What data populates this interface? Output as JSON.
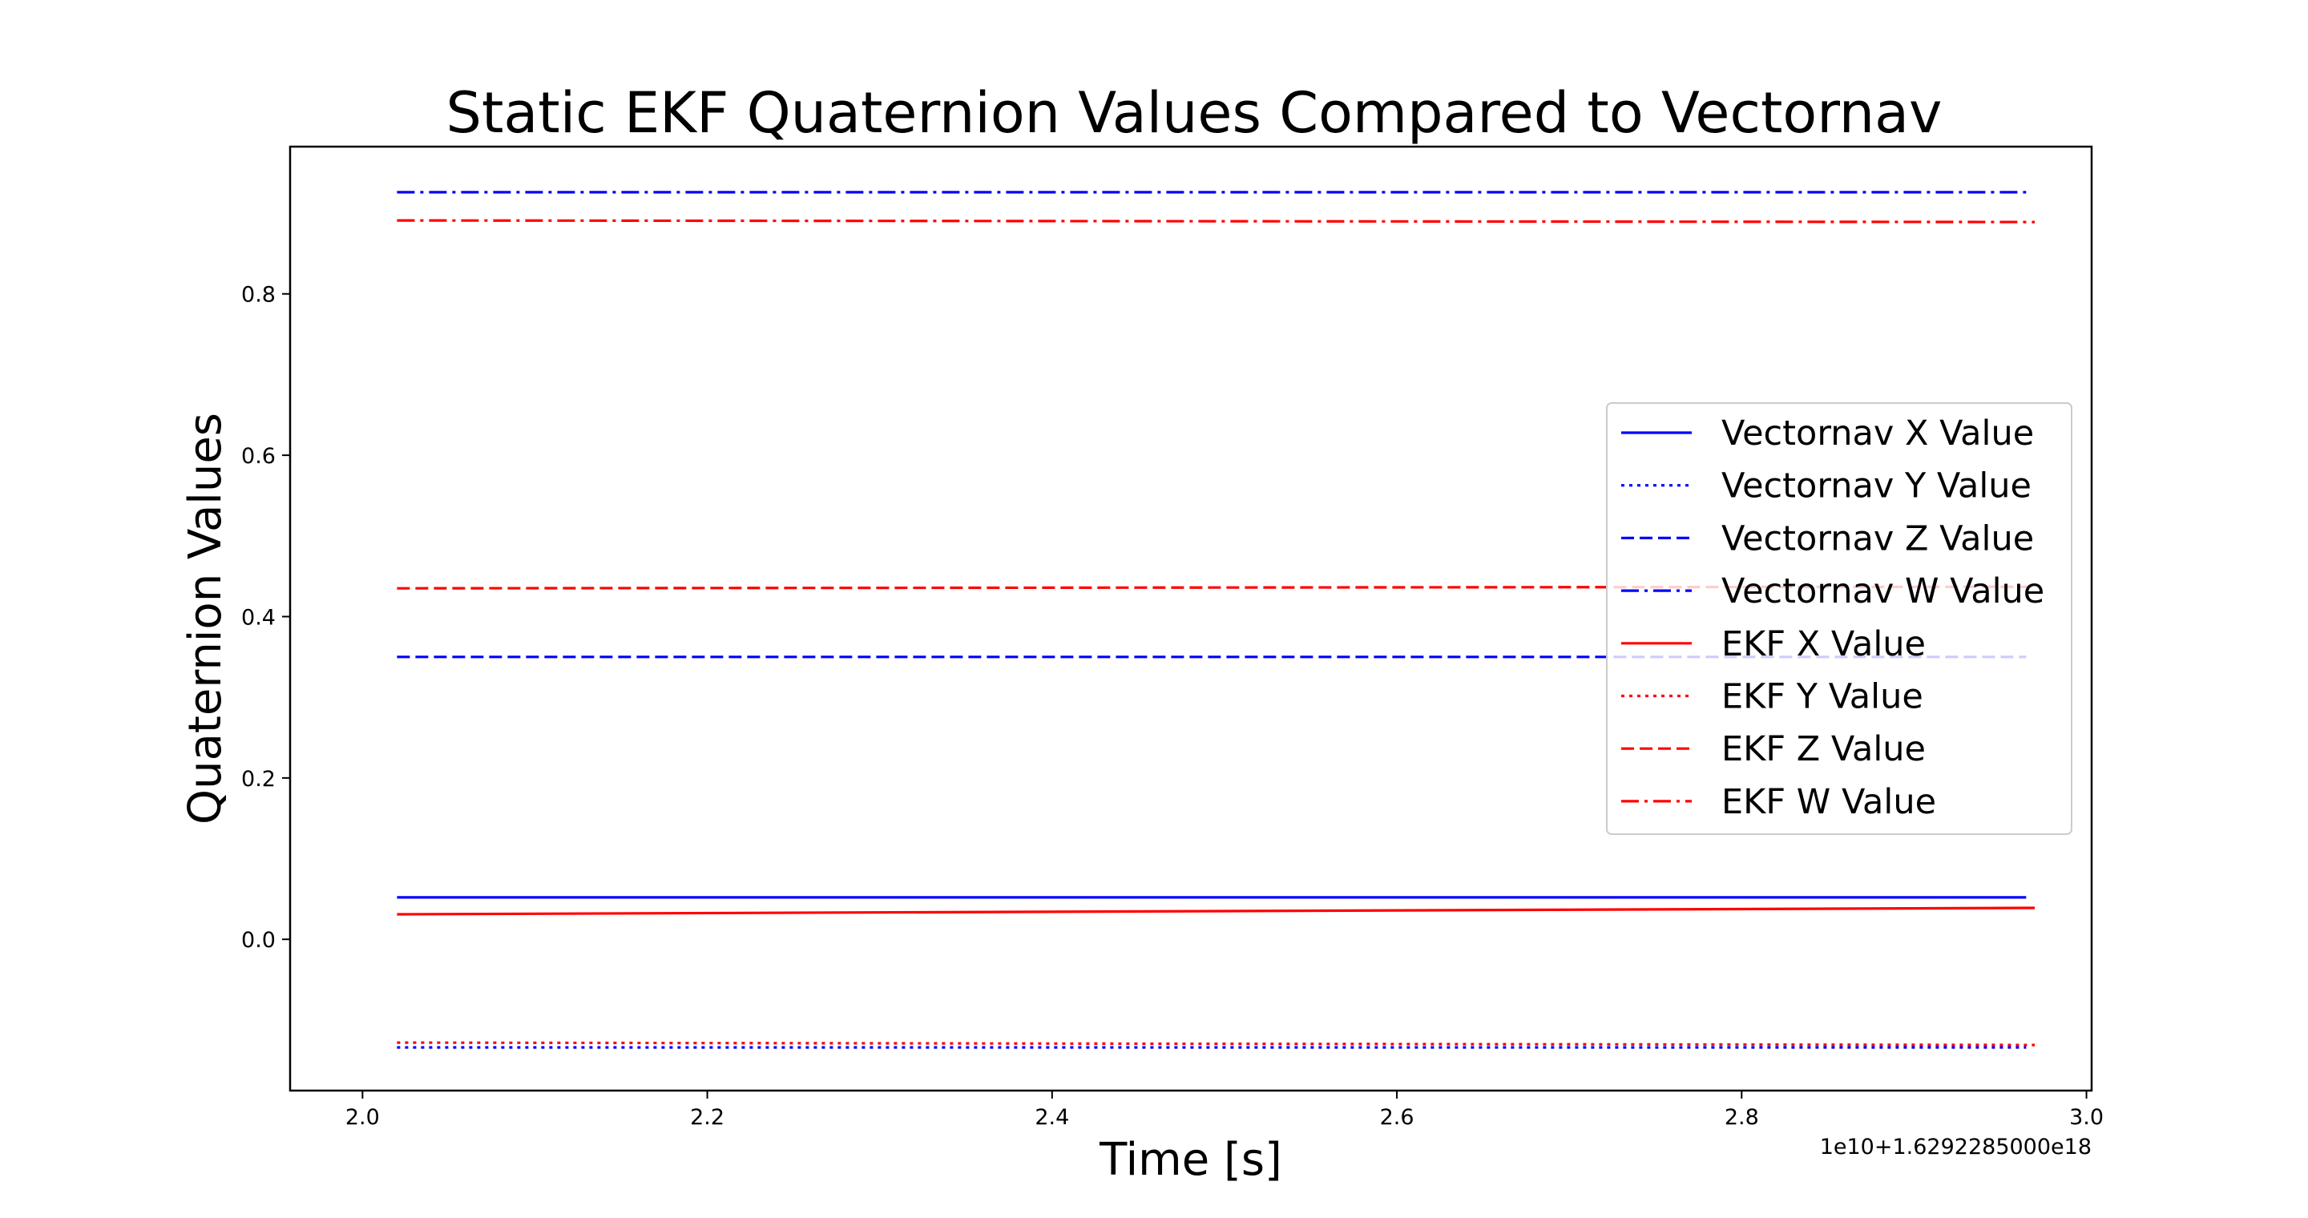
{
  "chart_data": {
    "type": "line",
    "title": "Static EKF Quaternion Values Compared to Vectornav",
    "xlabel": "Time [s]",
    "ylabel": "Quaternion Values",
    "x_offset_label": "1e10+1.6292285000e18",
    "xlim": [
      1.958,
      3.003
    ],
    "ylim": [
      -0.1875,
      0.9825
    ],
    "x_ticks": [
      {
        "value": 2.0,
        "label": "2.0"
      },
      {
        "value": 2.2,
        "label": "2.2"
      },
      {
        "value": 2.4,
        "label": "2.4"
      },
      {
        "value": 2.6,
        "label": "2.6"
      },
      {
        "value": 2.8,
        "label": "2.8"
      },
      {
        "value": 3.0,
        "label": "3.0"
      }
    ],
    "y_ticks": [
      {
        "value": 0.0,
        "label": "0.0"
      },
      {
        "value": 0.2,
        "label": "0.2"
      },
      {
        "value": 0.4,
        "label": "0.4"
      },
      {
        "value": 0.6,
        "label": "0.6"
      },
      {
        "value": 0.8,
        "label": "0.8"
      }
    ],
    "grid": false,
    "legend_position": "right",
    "series": [
      {
        "name": "Vectornav X Value",
        "color": "#0000ff",
        "style": "solid",
        "x": [
          2.02,
          2.965
        ],
        "y": [
          0.052,
          0.052
        ]
      },
      {
        "name": "Vectornav Y Value",
        "color": "#0000ff",
        "style": "dotted",
        "x": [
          2.02,
          2.965
        ],
        "y": [
          -0.134,
          -0.134
        ]
      },
      {
        "name": "Vectornav Z Value",
        "color": "#0000ff",
        "style": "dashed",
        "x": [
          2.02,
          2.965
        ],
        "y": [
          0.35,
          0.35
        ]
      },
      {
        "name": "Vectornav W Value",
        "color": "#0000ff",
        "style": "dashdot",
        "x": [
          2.02,
          2.965
        ],
        "y": [
          0.926,
          0.926
        ]
      },
      {
        "name": "EKF X Value",
        "color": "#ff0000",
        "style": "solid",
        "x": [
          2.02,
          2.97
        ],
        "y": [
          0.031,
          0.039
        ]
      },
      {
        "name": "EKF Y Value",
        "color": "#ff0000",
        "style": "dotted",
        "x": [
          2.02,
          2.97
        ],
        "y": [
          -0.128,
          -0.131
        ]
      },
      {
        "name": "EKF Z Value",
        "color": "#ff0000",
        "style": "dashed",
        "x": [
          2.02,
          2.97
        ],
        "y": [
          0.435,
          0.437
        ]
      },
      {
        "name": "EKF W Value",
        "color": "#ff0000",
        "style": "dashdot",
        "x": [
          2.02,
          2.97
        ],
        "y": [
          0.891,
          0.889
        ]
      }
    ]
  }
}
